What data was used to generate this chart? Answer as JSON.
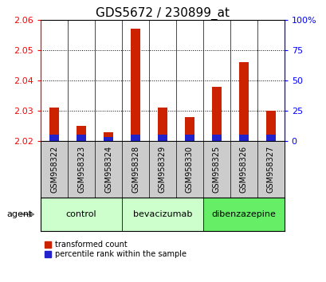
{
  "title": "GDS5672 / 230899_at",
  "samples": [
    "GSM958322",
    "GSM958323",
    "GSM958324",
    "GSM958328",
    "GSM958329",
    "GSM958330",
    "GSM958325",
    "GSM958326",
    "GSM958327"
  ],
  "red_values": [
    2.031,
    2.025,
    2.023,
    2.057,
    2.031,
    2.028,
    2.038,
    2.046,
    2.03
  ],
  "blue_percentile": [
    5,
    5,
    3,
    5,
    5,
    5,
    5,
    5,
    5
  ],
  "ylim_left": [
    2.02,
    2.06
  ],
  "ylim_right": [
    0,
    100
  ],
  "yticks_left": [
    2.02,
    2.03,
    2.04,
    2.05,
    2.06
  ],
  "yticks_right": [
    0,
    25,
    50,
    75,
    100
  ],
  "groups": [
    {
      "label": "control",
      "start": 0,
      "end": 3,
      "color": "#ccffcc"
    },
    {
      "label": "bevacizumab",
      "start": 3,
      "end": 6,
      "color": "#ccffcc"
    },
    {
      "label": "dibenzazepine",
      "start": 6,
      "end": 9,
      "color": "#66ee66"
    }
  ],
  "bar_width": 0.35,
  "bar_color_red": "#cc2200",
  "bar_color_blue": "#2222cc",
  "sample_bg_color": "#cccccc",
  "agent_label": "agent",
  "legend_red": "transformed count",
  "legend_blue": "percentile rank within the sample",
  "title_fontsize": 11,
  "tick_fontsize": 8,
  "label_fontsize": 7
}
